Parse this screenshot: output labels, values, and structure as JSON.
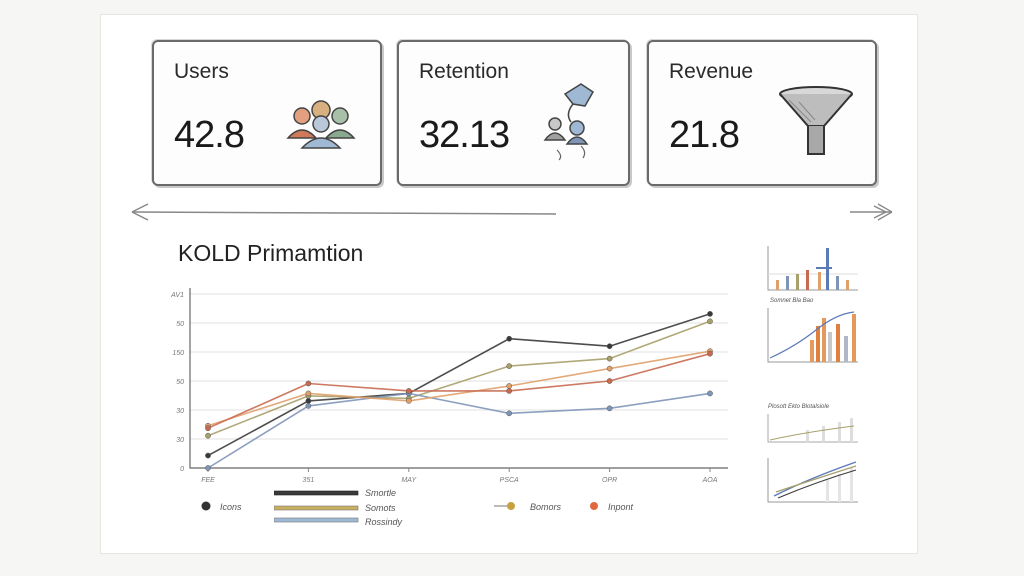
{
  "kpis": [
    {
      "label": "Users",
      "value": "42.8",
      "icon": "users-icon"
    },
    {
      "label": "Retention",
      "value": "32.13",
      "icon": "retention-icon"
    },
    {
      "label": "Revenue",
      "value": "21.8",
      "icon": "funnel-icon"
    }
  ],
  "section": {
    "title": "KOLD Primamtion"
  },
  "chart_data": {
    "type": "line",
    "title": "KOLD Primamtion",
    "x_ticks": [
      "FEE",
      "351",
      "MAY",
      "PSCA",
      "OPR",
      "AOA"
    ],
    "y_ticks": [
      "AV1",
      "50",
      "150",
      "50",
      "30",
      "30",
      "0"
    ],
    "x": [
      0,
      1,
      2,
      3,
      4,
      5
    ],
    "series": [
      {
        "name": "Smortle",
        "color": "#3a3a3a",
        "values": [
          5,
          27,
          30,
          52,
          49,
          62
        ]
      },
      {
        "name": "Somots",
        "color": "#a8a06a",
        "values": [
          13,
          29,
          28,
          41,
          44,
          59
        ]
      },
      {
        "name": "Rossindy",
        "color": "#7f95b8",
        "values": [
          0,
          25,
          30,
          22,
          24,
          30
        ]
      },
      {
        "name": "Bomors",
        "color": "#e0a06a",
        "values": [
          17,
          30,
          27,
          33,
          40,
          47
        ]
      },
      {
        "name": "Icons",
        "color": "#c86a50",
        "values": [
          16,
          34,
          31,
          31,
          35,
          46
        ]
      }
    ],
    "ylim": [
      0,
      70
    ],
    "grid": true,
    "legend_placement": "bottom"
  },
  "legend": {
    "left_item": "Icons",
    "mid_items": [
      "Smortle",
      "Somots",
      "Rossindy"
    ],
    "right_items": [
      "Bomors",
      "Inpont"
    ]
  },
  "thumbnails": [
    {
      "title": ""
    },
    {
      "title": "Somnet Bla Bao"
    },
    {
      "title": "Plosott Ekto Blotalsiole"
    },
    {
      "title": ""
    }
  ],
  "colors": {
    "ink": "#2a2a2a",
    "orange": "#e39a5c",
    "blue": "#7f95b8",
    "olive": "#a8a06a",
    "red": "#c86a50"
  }
}
